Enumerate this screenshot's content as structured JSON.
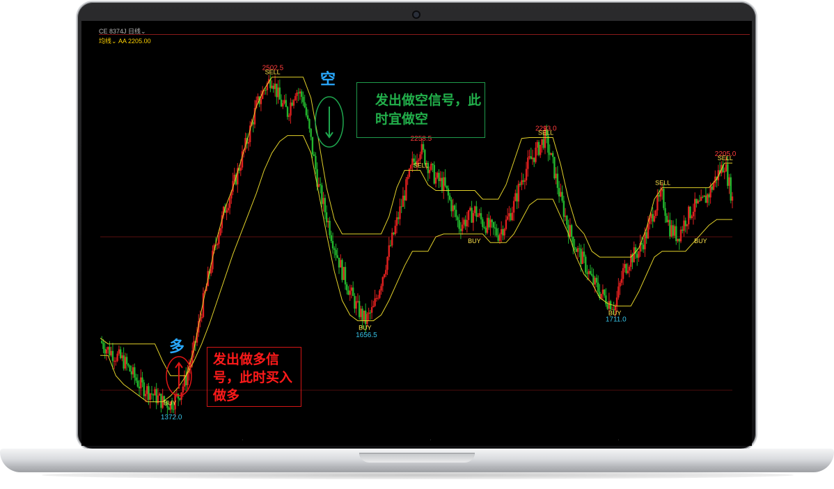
{
  "header": {
    "symbol_line": "CE 8374J  日线⌄",
    "indicator_line": "均线⌄   AA 2205.00"
  },
  "annotations": {
    "long_char": "多",
    "short_char": "空",
    "long_signal_text": "发出做多信号，此时买入做多",
    "short_signal_text": "发出做空信号，此时宜做空"
  },
  "colors": {
    "up": "#e0201f",
    "down": "#22b52d",
    "channel": "#e3d22a",
    "label_high": "#ff3b3b",
    "label_low": "#37c4e8",
    "signal_text": "#ffe34a"
  },
  "chart_data": {
    "type": "candlestick",
    "title": "",
    "xlabel": "",
    "ylabel": "",
    "ylim": [
      1300,
      2600
    ],
    "extremes": [
      {
        "label": "1372.0",
        "value": 1372.0,
        "kind": "low"
      },
      {
        "label": "2502.5",
        "value": 2502.5,
        "kind": "high"
      },
      {
        "label": "1656.5",
        "value": 1656.5,
        "kind": "low"
      },
      {
        "label": "2258.5",
        "value": 2258.5,
        "kind": "high"
      },
      {
        "label": "2293.0",
        "value": 2293.0,
        "kind": "high"
      },
      {
        "label": "1711.0",
        "value": 1711.0,
        "kind": "low"
      },
      {
        "label": "2205.0",
        "value": 2205.0,
        "kind": "high"
      }
    ],
    "signals": [
      "BUY",
      "SELL",
      "BUY",
      "SELL",
      "BUY",
      "SELL",
      "BUY",
      "SELL",
      "BUY",
      "SELL"
    ],
    "x_tick_labels": [
      "·",
      "·",
      "·"
    ],
    "series": [
      {
        "name": "",
        "kind": "close_path",
        "values": [
          1590,
          1560,
          1540,
          1520,
          1480,
          1440,
          1420,
          1400,
          1380,
          1372,
          1400,
          1460,
          1560,
          1700,
          1830,
          1950,
          2050,
          2120,
          2210,
          2300,
          2400,
          2460,
          2502,
          2420,
          2380,
          2460,
          2430,
          2280,
          2120,
          2020,
          1920,
          1830,
          1760,
          1700,
          1660,
          1700,
          1800,
          1900,
          2000,
          2100,
          2200,
          2258,
          2200,
          2150,
          2130,
          2060,
          1990,
          2010,
          2040,
          2000,
          1980,
          1960,
          2000,
          2060,
          2150,
          2210,
          2250,
          2293,
          2200,
          2080,
          1980,
          1910,
          1860,
          1800,
          1760,
          1730,
          1711,
          1830,
          1880,
          1900,
          1960,
          2050,
          2090,
          1980,
          1950,
          2010,
          2050,
          2060,
          2100,
          2160,
          2205,
          2080
        ]
      },
      {
        "name": "",
        "kind": "channel_support",
        "values": [
          1540,
          1540,
          1470,
          1440,
          1420,
          1400,
          1380,
          1380,
          1380,
          1400,
          1430,
          1470,
          1520,
          1580,
          1650,
          1730,
          1810,
          1890,
          1960,
          2030,
          2100,
          2180,
          2240,
          2280,
          2300,
          2300,
          2300,
          2240,
          2100,
          1960,
          1830,
          1730,
          1680,
          1660,
          1660,
          1660,
          1680,
          1730,
          1790,
          1850,
          1900,
          1900,
          1900,
          1950,
          1960,
          1960,
          1960,
          1960,
          1960,
          1960,
          1930,
          1930,
          1930,
          1960,
          2010,
          2060,
          2080,
          2080,
          2080,
          2020,
          1960,
          1880,
          1820,
          1790,
          1740,
          1720,
          1711,
          1711,
          1711,
          1760,
          1820,
          1880,
          1900,
          1900,
          1900,
          1900,
          1930,
          1960,
          1990,
          2010,
          2010,
          2010
        ]
      },
      {
        "name": "",
        "kind": "channel_resistance",
        "values": [
          1600,
          1580,
          1580,
          1580,
          1580,
          1580,
          1580,
          1580,
          1520,
          1470,
          1470,
          1470,
          1560,
          1700,
          1830,
          1950,
          2050,
          2120,
          2210,
          2300,
          2400,
          2460,
          2502,
          2502,
          2502,
          2502,
          2502,
          2430,
          2280,
          2120,
          2010,
          1960,
          1960,
          1960,
          1960,
          1960,
          1960,
          2020,
          2120,
          2180,
          2180,
          2180,
          2130,
          2110,
          2110,
          2110,
          2110,
          2110,
          2110,
          2080,
          2080,
          2080,
          2130,
          2210,
          2290,
          2293,
          2293,
          2293,
          2293,
          2200,
          2080,
          1990,
          1960,
          1900,
          1880,
          1880,
          1880,
          1880,
          1880,
          1910,
          1980,
          2080,
          2120,
          2120,
          2120,
          2120,
          2120,
          2120,
          2120,
          2150,
          2205,
          2205
        ]
      }
    ],
    "grid": false
  }
}
